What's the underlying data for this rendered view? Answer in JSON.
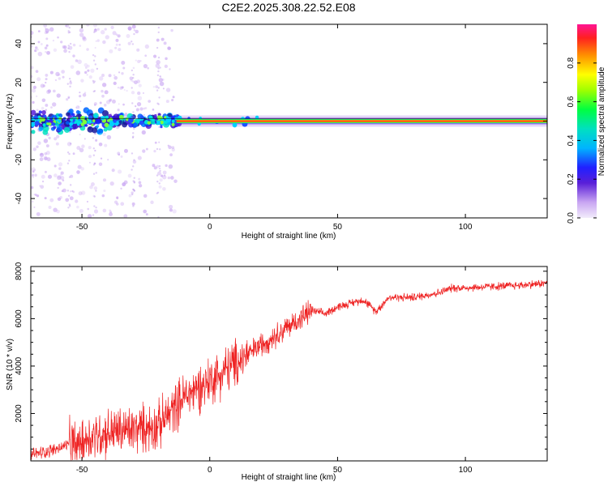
{
  "title": "C2E2.2025.308.22.52.E08",
  "chart_data": [
    {
      "type": "heatmap",
      "name": "spectrogram",
      "xlabel": "Height of straight line (km)",
      "ylabel": "Frequency (Hz)",
      "xlim": [
        -70,
        132
      ],
      "ylim": [
        -50,
        50
      ],
      "xticks": [
        -50,
        0,
        50,
        100
      ],
      "xtick_labels": [
        "-50",
        "0",
        "50",
        "100"
      ],
      "yticks": [
        -40,
        -20,
        0,
        20,
        40
      ],
      "ytick_labels": [
        "-40",
        "-20",
        "0",
        "20",
        "40"
      ],
      "colorbar": {
        "label": "Normalized spectral amplitude",
        "range": [
          0,
          1
        ],
        "ticks": [
          0.0,
          0.2,
          0.4,
          0.6,
          0.8
        ],
        "tick_labels": [
          "0.0",
          "0.2",
          "0.4",
          "0.6",
          "0.8"
        ],
        "colors": [
          "#f2ecfb",
          "#8a2be2",
          "#2020ff",
          "#00bfff",
          "#00ff7f",
          "#7fff00",
          "#ffff00",
          "#ff8c00",
          "#ff2020",
          "#ff1493"
        ]
      },
      "carrier_line_hz": 0,
      "carrier_x_range": [
        -13,
        132
      ],
      "noisy_region_x_range": [
        -70,
        -13
      ]
    },
    {
      "type": "line",
      "name": "snr",
      "xlabel": "Height of straight line (km)",
      "ylabel": "SNR (10 * v/v)",
      "xlim": [
        -70,
        132
      ],
      "ylim": [
        0,
        8200
      ],
      "xticks": [
        -50,
        0,
        50,
        100
      ],
      "xtick_labels": [
        "-50",
        "0",
        "50",
        "100"
      ],
      "yticks": [
        2000,
        4000,
        6000,
        8000
      ],
      "ytick_labels": [
        "2000",
        "4000",
        "6000",
        "8000"
      ],
      "color": "#ee2222",
      "trend_x": [
        -70,
        -60,
        -50,
        -40,
        -30,
        -20,
        -10,
        0,
        10,
        20,
        30,
        40,
        45,
        50,
        60,
        65,
        70,
        80,
        90,
        95,
        100,
        110,
        120,
        132
      ],
      "trend_y": [
        250,
        500,
        900,
        1200,
        1300,
        1500,
        2700,
        3400,
        4100,
        4900,
        5600,
        6350,
        6200,
        6500,
        6800,
        6300,
        6900,
        6900,
        7100,
        7300,
        7300,
        7350,
        7400,
        7500
      ]
    }
  ]
}
